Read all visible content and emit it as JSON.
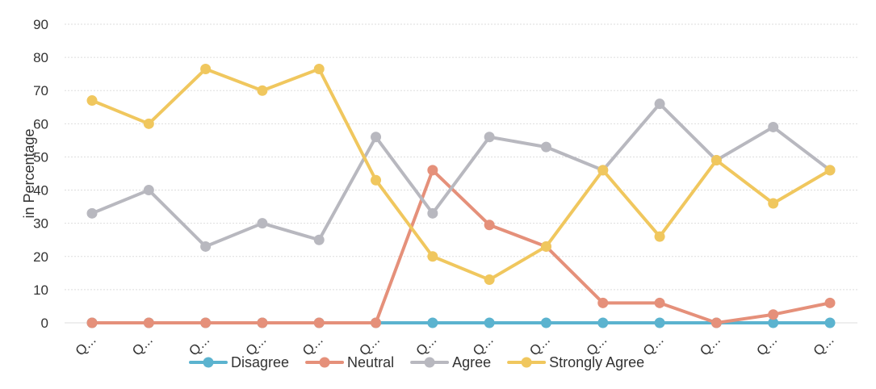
{
  "chart_data": {
    "type": "line",
    "title": "",
    "xlabel": "",
    "ylabel": "in Percentage",
    "ylim": [
      0,
      90
    ],
    "yticks": [
      0,
      10,
      20,
      30,
      40,
      50,
      60,
      70,
      80,
      90
    ],
    "grid": true,
    "legend_position": "bottom",
    "categories": [
      "Q...",
      "Q...",
      "Q...",
      "Q...",
      "Q...",
      "Q...",
      "Q...",
      "Q...",
      "Q...",
      "Q...",
      "Q...",
      "Q...",
      "Q...",
      "Q..."
    ],
    "series": [
      {
        "name": "Disagree",
        "color": "#5bb3cf",
        "values": [
          0,
          0,
          0,
          0,
          0,
          0,
          0,
          0,
          0,
          0,
          0,
          0,
          0,
          0
        ]
      },
      {
        "name": "Neutral",
        "color": "#e5907a",
        "values": [
          0,
          0,
          0,
          0,
          0,
          0,
          46,
          29.5,
          23,
          6,
          6,
          0,
          2.5,
          6
        ]
      },
      {
        "name": "Agree",
        "color": "#b8b8bf",
        "values": [
          33,
          40,
          23,
          30,
          25,
          56,
          33,
          56,
          53,
          46,
          66,
          49,
          59,
          46
        ]
      },
      {
        "name": "Strongly Agree",
        "color": "#f0c75e",
        "values": [
          67,
          60,
          76.5,
          70,
          76.5,
          43,
          20,
          13,
          23,
          46,
          26,
          49,
          36,
          46
        ]
      }
    ]
  }
}
